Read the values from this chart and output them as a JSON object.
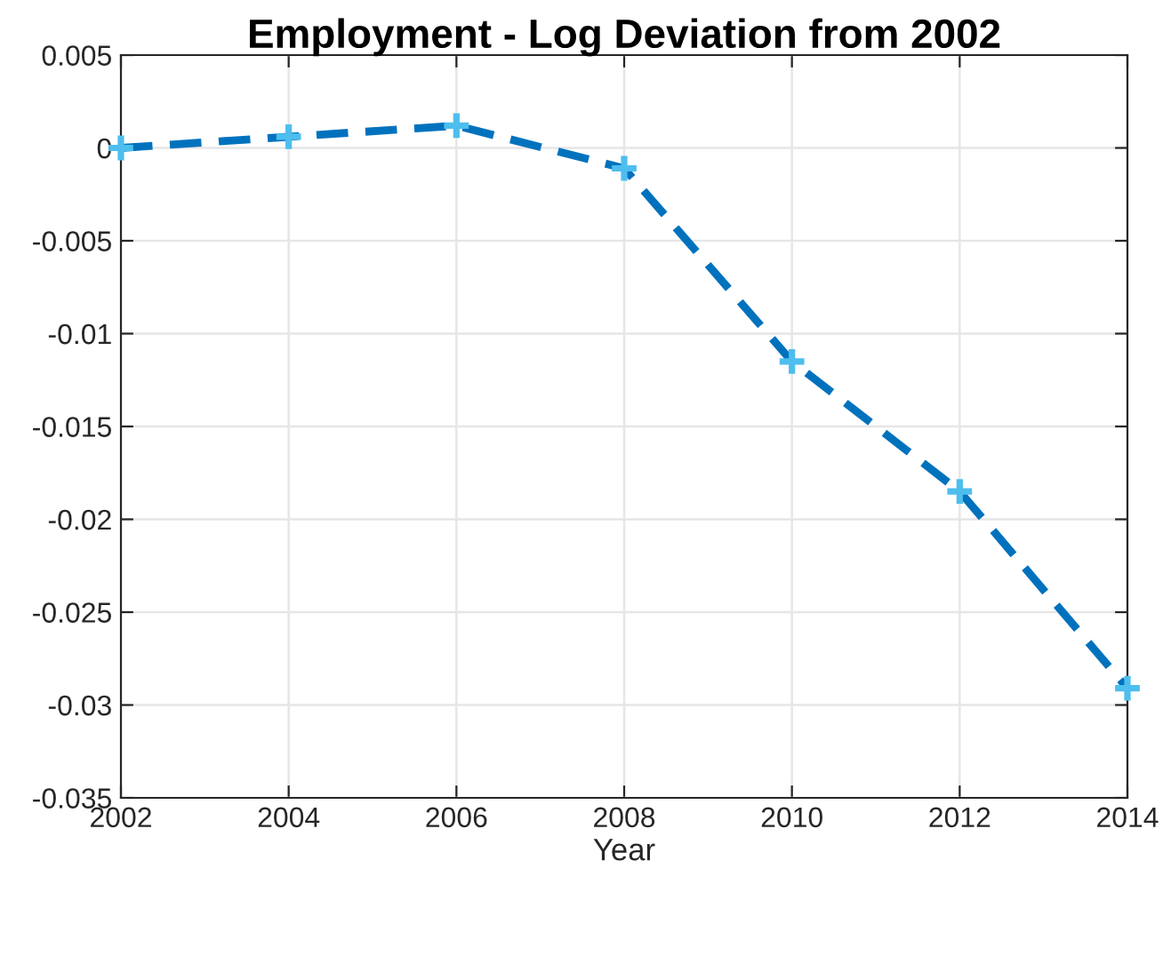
{
  "chart_data": {
    "type": "line",
    "title": "Employment - Log Deviation from 2002",
    "xlabel": "Year",
    "x": [
      2002,
      2004,
      2006,
      2008,
      2010,
      2012,
      2014
    ],
    "series": [
      {
        "color": "#0072bd",
        "colors": [
          "#4dbeee",
          "#4dbeee",
          "#4dbeee",
          "#4dbeee",
          "#4dbeee",
          "#4dbeee",
          "#4dbeee"
        ],
        "values": [
          0,
          0.0006,
          0.0012,
          -0.0011,
          -0.0115,
          -0.0185,
          -0.0291
        ]
      }
    ],
    "xlim": [
      2002,
      2014
    ],
    "xticks": [
      2002,
      2004,
      2006,
      2008,
      2010,
      2012,
      2014
    ],
    "ylim": [
      -0.035,
      0.005
    ],
    "yticks": [
      -0.035,
      -0.03,
      -0.025,
      -0.02,
      -0.015,
      -0.01,
      -0.005,
      0,
      0.005
    ],
    "grid": true,
    "marker": "cross",
    "line_style": "dashed"
  }
}
